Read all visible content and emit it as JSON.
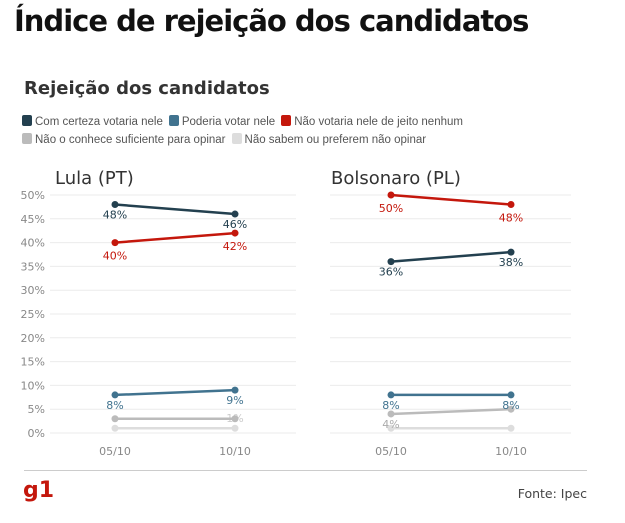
{
  "title": "Índice de rejeição dos candidatos",
  "subtitle": "Rejeição dos candidatos",
  "source": "Fonte: Ipec",
  "logo": "g1",
  "chart_data": {
    "type": "line",
    "title": "Rejeição dos candidatos",
    "ylim": [
      0,
      50
    ],
    "yticks": [
      "50%",
      "45%",
      "40%",
      "35%",
      "30%",
      "25%",
      "20%",
      "15%",
      "10%",
      "5%",
      "0%"
    ],
    "x": [
      "05/10",
      "10/10"
    ],
    "legend": [
      {
        "name": "Com certeza votaria nele",
        "color": "#23404f"
      },
      {
        "name": "Poderia votar nele",
        "color": "#41738f"
      },
      {
        "name": "Não votaria nele de jeito nenhum",
        "color": "#c4170c"
      },
      {
        "name": "Não o conhece suficiente para opinar",
        "color": "#bbbbbb"
      },
      {
        "name": "Não sabem ou preferem não opinar",
        "color": "#dddddd"
      }
    ],
    "panels": [
      {
        "name": "Lula (PT)",
        "series": [
          {
            "name": "Com certeza votaria nele",
            "values": [
              48,
              46
            ],
            "labels": [
              "48%",
              "46%"
            ]
          },
          {
            "name": "Poderia votar nele",
            "values": [
              8,
              9
            ],
            "labels": [
              "8%",
              "9%"
            ]
          },
          {
            "name": "Não votaria nele de jeito nenhum",
            "values": [
              40,
              42
            ],
            "labels": [
              "40%",
              "42%"
            ]
          },
          {
            "name": "Não o conhece suficiente para opinar",
            "values": [
              3,
              3
            ],
            "labels": [
              "",
              ""
            ]
          },
          {
            "name": "Não sabem ou preferem não opinar",
            "values": [
              1,
              1
            ],
            "labels": [
              "",
              "1%"
            ]
          }
        ]
      },
      {
        "name": "Bolsonaro (PL)",
        "series": [
          {
            "name": "Com certeza votaria nele",
            "values": [
              36,
              38
            ],
            "labels": [
              "36%",
              "38%"
            ]
          },
          {
            "name": "Poderia votar nele",
            "values": [
              8,
              8
            ],
            "labels": [
              "8%",
              "8%"
            ]
          },
          {
            "name": "Não votaria nele de jeito nenhum",
            "values": [
              50,
              48
            ],
            "labels": [
              "50%",
              "48%"
            ]
          },
          {
            "name": "Não o conhece suficiente para opinar",
            "values": [
              4,
              5
            ],
            "labels": [
              "4%",
              ""
            ]
          },
          {
            "name": "Não sabem ou preferem não opinar",
            "values": [
              1,
              1
            ],
            "labels": [
              "",
              ""
            ]
          }
        ]
      }
    ]
  }
}
